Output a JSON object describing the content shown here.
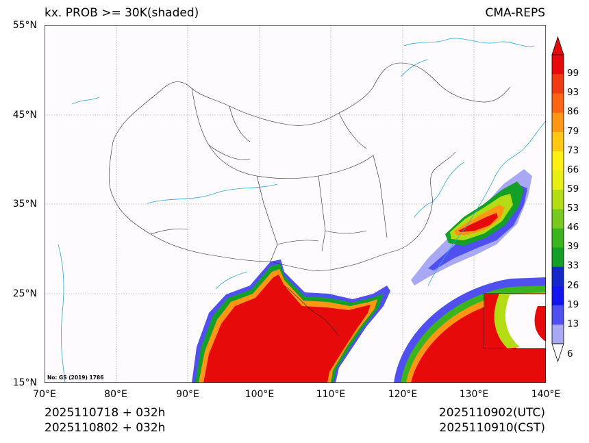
{
  "title": {
    "left": "kx. PROB >= 30K(shaded)",
    "right": "CMA-REPS"
  },
  "axes": {
    "lat_labels": [
      "55°N",
      "45°N",
      "35°N",
      "25°N",
      "15°N"
    ],
    "lon_labels": [
      "70°E",
      "80°E",
      "90°E",
      "100°E",
      "110°E",
      "120°E",
      "130°E",
      "140°E"
    ],
    "lat_range": [
      15,
      55
    ],
    "lon_range": [
      70,
      140
    ]
  },
  "map": {
    "note": "No: GS (2019) 1786"
  },
  "footer": {
    "init_utc": "2025110718  +  032h",
    "init_cst": "2025110802  +  032h",
    "valid_utc": "2025110902(UTC)",
    "valid_cst": "2025110910(CST)"
  },
  "colorbar": {
    "levels": [
      "6",
      "13",
      "19",
      "26",
      "33",
      "39",
      "46",
      "53",
      "59",
      "66",
      "73",
      "79",
      "86",
      "93",
      "99"
    ],
    "colors": [
      "#a8a8f5",
      "#5050f0",
      "#1414f0",
      "#1428c8",
      "#14a028",
      "#3cb41e",
      "#78c81e",
      "#b4dc14",
      "#e6ee14",
      "#ffee14",
      "#ffc814",
      "#ff9614",
      "#ff6414",
      "#f03c14",
      "#e60a0a"
    ]
  }
}
